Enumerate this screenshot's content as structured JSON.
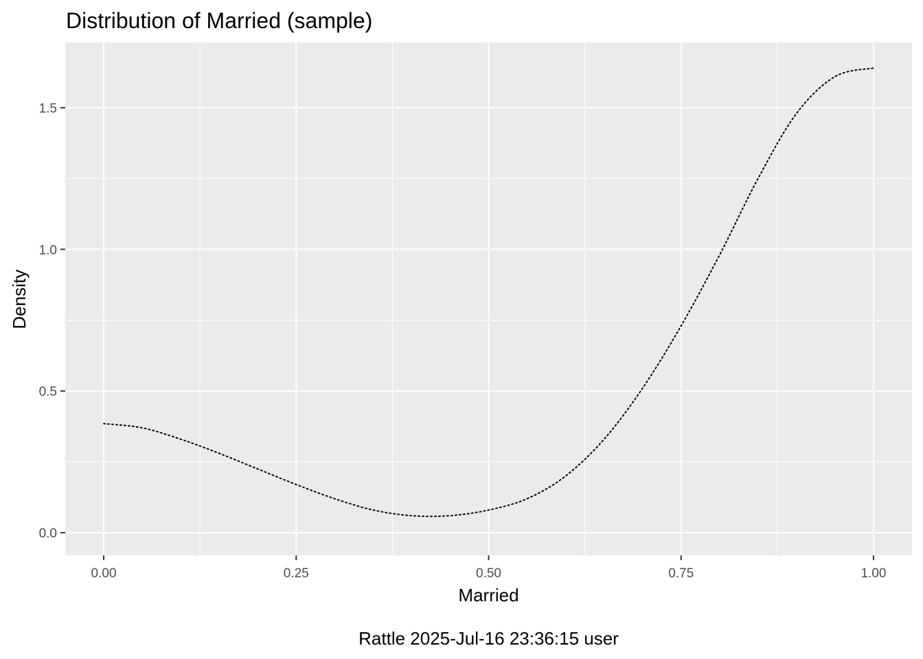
{
  "chart_data": {
    "type": "line",
    "title": "Distribution of Married (sample)",
    "xlabel": "Married",
    "ylabel": "Density",
    "caption": "Rattle 2025-Jul-16 23:36:15 user",
    "xlim": [
      -0.05,
      1.05
    ],
    "ylim": [
      -0.08,
      1.73
    ],
    "x_ticks": [
      0.0,
      0.25,
      0.5,
      0.75,
      1.0
    ],
    "x_tick_labels": [
      "0.00",
      "0.25",
      "0.50",
      "0.75",
      "1.00"
    ],
    "y_ticks": [
      0.0,
      0.5,
      1.0,
      1.5
    ],
    "y_tick_labels": [
      "0.0",
      "0.5",
      "1.0",
      "1.5"
    ],
    "grid": true,
    "line_style": "dotted",
    "series": [
      {
        "x": [
          0.0,
          0.05,
          0.1,
          0.15,
          0.2,
          0.25,
          0.3,
          0.35,
          0.4,
          0.45,
          0.5,
          0.55,
          0.6,
          0.65,
          0.7,
          0.75,
          0.8,
          0.85,
          0.9,
          0.95,
          1.0
        ],
        "y": [
          0.385,
          0.37,
          0.33,
          0.28,
          0.225,
          0.17,
          0.12,
          0.08,
          0.06,
          0.06,
          0.08,
          0.12,
          0.2,
          0.33,
          0.51,
          0.73,
          0.98,
          1.25,
          1.48,
          1.61,
          1.64
        ]
      }
    ],
    "colors": {
      "panel": "#ebebeb",
      "grid": "#ffffff",
      "line": "#000000",
      "tick_text": "#4d4d4d"
    }
  }
}
